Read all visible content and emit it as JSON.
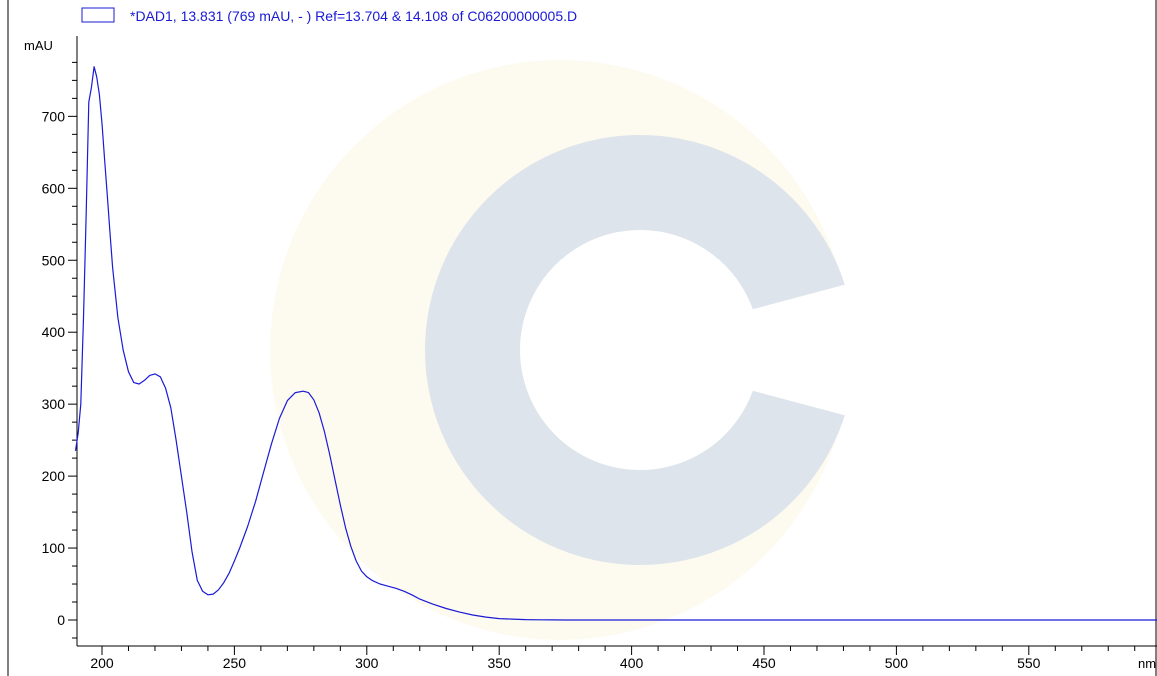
{
  "chart_data": {
    "type": "line",
    "legend": {
      "label": "*DAD1, 13.831 (769 mAU, - ) Ref=13.704 & 14.108 of C06200000005.D",
      "color": "#1a1ad6"
    },
    "y_unit": "mAU",
    "x_unit": "nm",
    "xlim": [
      190,
      600
    ],
    "ylim": [
      -40,
      780
    ],
    "x_ticks": [
      200,
      250,
      300,
      350,
      400,
      450,
      500,
      550
    ],
    "y_ticks": [
      0,
      100,
      200,
      300,
      400,
      500,
      600,
      700
    ],
    "grid": false,
    "series": [
      {
        "color": "#1a1ad6",
        "x": [
          190,
          191,
          192,
          193,
          194,
          195,
          196,
          197,
          198,
          199,
          200,
          201,
          202,
          203,
          204,
          206,
          208,
          210,
          212,
          214,
          216,
          218,
          220,
          222,
          224,
          226,
          228,
          230,
          232,
          234,
          236,
          238,
          240,
          242,
          244,
          246,
          248,
          250,
          252,
          255,
          258,
          261,
          264,
          267,
          270,
          273,
          276,
          278,
          280,
          282,
          284,
          286,
          288,
          290,
          292,
          294,
          296,
          298,
          300,
          302,
          305,
          308,
          311,
          314,
          317,
          320,
          325,
          330,
          335,
          340,
          345,
          350,
          355,
          360,
          365,
          370,
          375,
          380,
          385,
          390,
          395,
          400,
          410,
          420,
          450,
          500,
          550,
          600
        ],
        "y": [
          235,
          260,
          300,
          420,
          560,
          720,
          740,
          769,
          755,
          730,
          690,
          640,
          590,
          540,
          490,
          420,
          375,
          345,
          330,
          328,
          333,
          340,
          342,
          338,
          322,
          295,
          250,
          200,
          150,
          95,
          55,
          40,
          35,
          36,
          42,
          52,
          65,
          82,
          100,
          130,
          165,
          205,
          245,
          280,
          305,
          316,
          318,
          316,
          306,
          288,
          262,
          230,
          195,
          160,
          128,
          102,
          82,
          68,
          60,
          55,
          50,
          47,
          44,
          40,
          35,
          29,
          22,
          16,
          11,
          7,
          4,
          2,
          1.2,
          0.6,
          0.3,
          0.1,
          0,
          0,
          0,
          0,
          0,
          0,
          0,
          0,
          0,
          0,
          0,
          0
        ]
      }
    ]
  }
}
